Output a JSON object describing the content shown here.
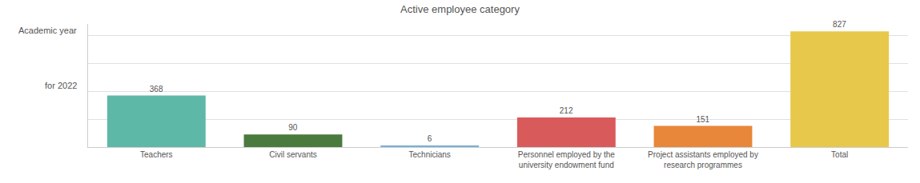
{
  "chart_data": {
    "type": "bar",
    "title": "Active employee category",
    "annotations": [
      "Academic year",
      "for 2022"
    ],
    "categories": [
      "Teachers",
      "Civil servants",
      "Technicians",
      "Personnel employed by the\nuniversity endowment fund",
      "Project assistants employed by\nresearch programmes",
      "Total"
    ],
    "values": [
      368,
      90,
      6,
      212,
      151,
      827
    ],
    "colors": [
      "#5db8a8",
      "#4a7a3d",
      "#7aafd4",
      "#d95a5a",
      "#e8873a",
      "#e8c84a"
    ],
    "ylim": [
      0,
      880
    ],
    "yticks": [
      0,
      200,
      400,
      600,
      800
    ],
    "grid": true,
    "data_labels": true,
    "tick_labels": "x"
  }
}
